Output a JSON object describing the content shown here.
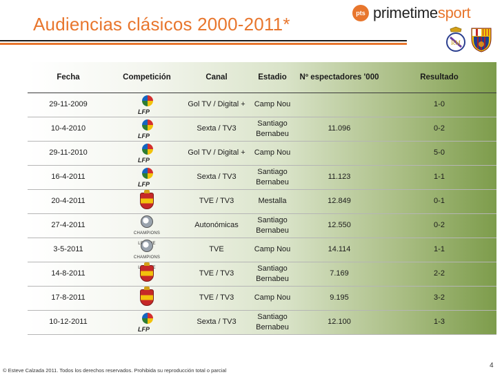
{
  "title": "Audiencias clásicos 2000-2011*",
  "brand": {
    "badge": "pts",
    "name_a": "primetime",
    "name_b": "sport"
  },
  "crests": {
    "left": "real-madrid-crest",
    "right": "fc-barcelona-crest"
  },
  "colors": {
    "accent": "#e8762d",
    "band_end": "#7d9c4b"
  },
  "table": {
    "headers": {
      "fecha": "Fecha",
      "competicion": "Competición",
      "canal": "Canal",
      "estadio": "Estadio",
      "espectadores": "Nº espectadores '000",
      "resultado": "Resultado"
    },
    "rows": [
      {
        "fecha": "29-11-2009",
        "competicion": "lfp-logo",
        "canal": "Gol TV / Digital +",
        "estadio": "Camp Nou",
        "espectadores": "",
        "resultado": "1-0"
      },
      {
        "fecha": "10-4-2010",
        "competicion": "lfp-logo",
        "canal": "Sexta / TV3",
        "estadio": "Santiago Bernabeu",
        "espectadores": "11.096",
        "resultado": "0-2"
      },
      {
        "fecha": "29-11-2010",
        "competicion": "lfp-logo",
        "canal": "Gol TV / Digital +",
        "estadio": "Camp Nou",
        "espectadores": "",
        "resultado": "5-0"
      },
      {
        "fecha": "16-4-2011",
        "competicion": "lfp-logo",
        "canal": "Sexta / TV3",
        "estadio": "Santiago Bernabeu",
        "espectadores": "11.123",
        "resultado": "1-1"
      },
      {
        "fecha": "20-4-2011",
        "competicion": "rfef-logo",
        "canal": "TVE / TV3",
        "estadio": "Mestalla",
        "espectadores": "12.849",
        "resultado": "0-1"
      },
      {
        "fecha": "27-4-2011",
        "competicion": "champions-league-logo",
        "canal": "Autonómicas",
        "estadio": "Santiago Bernabeu",
        "espectadores": "12.550",
        "resultado": "0-2"
      },
      {
        "fecha": "3-5-2011",
        "competicion": "champions-league-logo",
        "canal": "TVE",
        "estadio": "Camp Nou",
        "espectadores": "14.114",
        "resultado": "1-1"
      },
      {
        "fecha": "14-8-2011",
        "competicion": "rfef-logo",
        "canal": "TVE / TV3",
        "estadio": "Santiago Bernabeu",
        "espectadores": "7.169",
        "resultado": "2-2"
      },
      {
        "fecha": "17-8-2011",
        "competicion": "rfef-logo",
        "canal": "TVE / TV3",
        "estadio": "Camp Nou",
        "espectadores": "9.195",
        "resultado": "3-2"
      },
      {
        "fecha": "10-12-2011",
        "competicion": "lfp-logo",
        "canal": "Sexta / TV3",
        "estadio": "Santiago Bernabeu",
        "espectadores": "12.100",
        "resultado": "1-3"
      }
    ]
  },
  "logo_text": {
    "lfp": "LFP",
    "ucl": "CHAMPIONS LEAGUE"
  },
  "footer": "© Esteve Calzada 2011. Todos los derechos reservados. Prohibida su reproducción total o parcial",
  "page_number": "4"
}
